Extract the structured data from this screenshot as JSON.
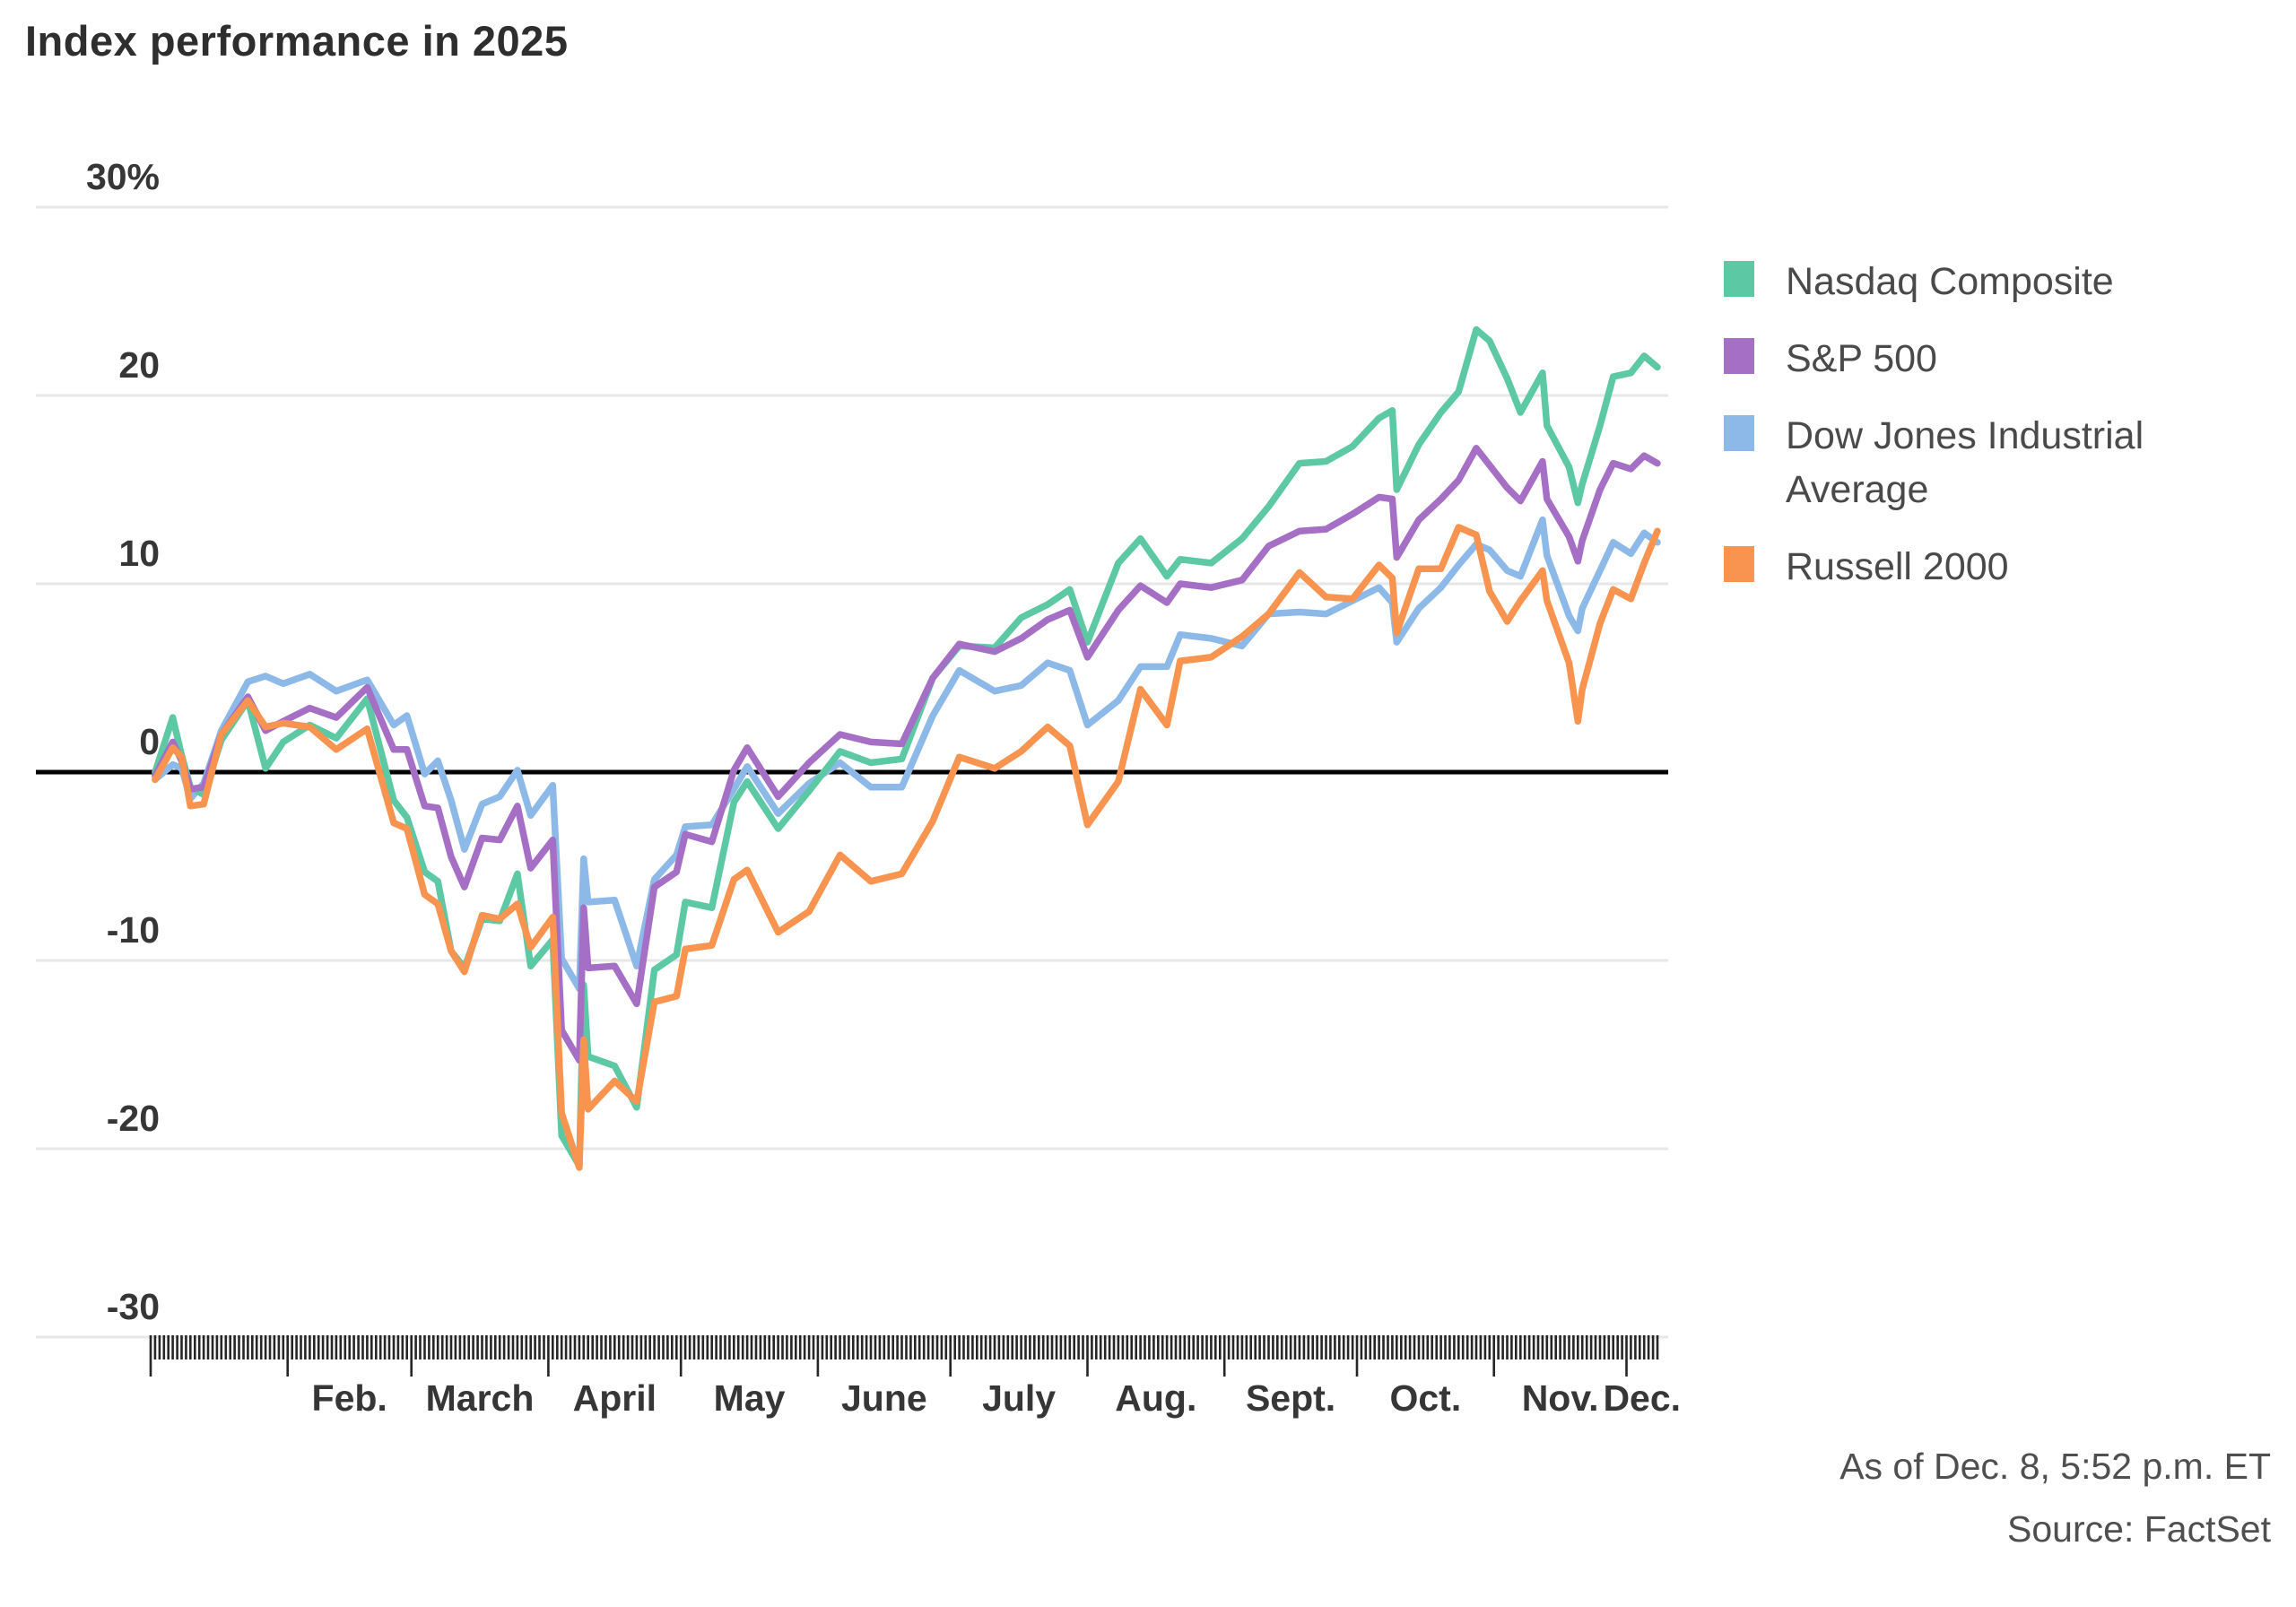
{
  "chart_data": {
    "type": "line",
    "title": "Index performance in 2025",
    "as_of": "As of Dec. 8, 5:52 p.m. ET",
    "source": "Source: FactSet",
    "grid_on": true,
    "legend_position": "right",
    "ylabel": "",
    "xlabel": "",
    "ylim": [
      -30,
      30
    ],
    "y_ticks": [
      {
        "value": 30,
        "label": "30%"
      },
      {
        "value": 20,
        "label": "20"
      },
      {
        "value": 10,
        "label": "10"
      },
      {
        "value": 0,
        "label": "0"
      },
      {
        "value": -10,
        "label": "-10"
      },
      {
        "value": -20,
        "label": "-20"
      },
      {
        "value": -30,
        "label": "-30"
      }
    ],
    "zero_line_color": "#000000",
    "gridline_color": "#e7e7e7",
    "tick_color": "#262626",
    "x_axis": {
      "unit": "day_of_year",
      "start_day": 1,
      "end_day": 342,
      "months": [
        {
          "label": "",
          "start_day": 1
        },
        {
          "label": "Feb.",
          "start_day": 32
        },
        {
          "label": "March",
          "start_day": 60
        },
        {
          "label": "April",
          "start_day": 91
        },
        {
          "label": "May",
          "start_day": 121
        },
        {
          "label": "June",
          "start_day": 152
        },
        {
          "label": "July",
          "start_day": 182
        },
        {
          "label": "Aug.",
          "start_day": 213
        },
        {
          "label": "Sept.",
          "start_day": 244
        },
        {
          "label": "Oct.",
          "start_day": 274
        },
        {
          "label": "Nov.",
          "start_day": 305
        },
        {
          "label": "Dec.",
          "start_day": 335
        }
      ]
    },
    "days": [
      2,
      6,
      8,
      10,
      13,
      17,
      23,
      27,
      31,
      37,
      43,
      50,
      56,
      59,
      63,
      66,
      69,
      72,
      76,
      80,
      84,
      87,
      92,
      94,
      98,
      99,
      100,
      106,
      111,
      115,
      120,
      122,
      128,
      133,
      136,
      143,
      150,
      157,
      164,
      171,
      178,
      184,
      192,
      198,
      204,
      209,
      213,
      220,
      225,
      231,
      234,
      241,
      248,
      254,
      261,
      267,
      273,
      279,
      282,
      283,
      288,
      293,
      297,
      301,
      304,
      308,
      311,
      316,
      317,
      322,
      324,
      325,
      329,
      332,
      336,
      339,
      342
    ],
    "series": [
      {
        "name": "Nasdaq Composite",
        "color": "#5dc8a4",
        "values": [
          0.0,
          2.9,
          0.9,
          -0.8,
          -1.2,
          1.7,
          3.8,
          0.2,
          1.6,
          2.5,
          1.8,
          3.9,
          -1.5,
          -2.4,
          -5.3,
          -5.8,
          -9.5,
          -10.4,
          -7.8,
          -7.9,
          -5.4,
          -10.3,
          -8.9,
          -19.3,
          -20.9,
          -11.3,
          -15.1,
          -15.6,
          -17.8,
          -10.5,
          -9.7,
          -6.9,
          -7.2,
          -1.6,
          -0.5,
          -3.0,
          -1.0,
          1.1,
          0.5,
          0.7,
          5.0,
          6.7,
          6.6,
          8.2,
          8.9,
          9.7,
          6.9,
          11.1,
          12.4,
          10.4,
          11.3,
          11.1,
          12.4,
          14.1,
          16.4,
          16.5,
          17.3,
          18.8,
          19.2,
          15.0,
          17.4,
          19.1,
          20.2,
          23.5,
          22.9,
          20.9,
          19.1,
          21.2,
          18.4,
          16.2,
          14.3,
          15.3,
          18.4,
          21.0,
          21.2,
          22.1,
          21.5
        ]
      },
      {
        "name": "S&P 500",
        "color": "#a56fc5",
        "values": [
          -0.2,
          1.6,
          0.6,
          -0.9,
          -0.8,
          2.0,
          4.0,
          2.2,
          2.7,
          3.4,
          2.9,
          4.5,
          1.2,
          1.2,
          -1.8,
          -1.9,
          -4.5,
          -6.1,
          -3.5,
          -3.6,
          -1.8,
          -5.1,
          -3.6,
          -13.7,
          -15.3,
          -7.2,
          -10.4,
          -10.3,
          -12.3,
          -6.1,
          -5.3,
          -3.3,
          -3.7,
          0.1,
          1.3,
          -1.3,
          0.5,
          2.0,
          1.6,
          1.5,
          5.0,
          6.8,
          6.4,
          7.1,
          8.1,
          8.6,
          6.1,
          8.6,
          9.9,
          9.0,
          10.0,
          9.8,
          10.2,
          12.0,
          12.8,
          12.9,
          13.7,
          14.6,
          14.5,
          11.4,
          13.4,
          14.5,
          15.5,
          17.2,
          16.3,
          15.1,
          14.4,
          16.5,
          14.5,
          12.5,
          11.2,
          12.3,
          15.0,
          16.4,
          16.1,
          16.8,
          16.4
        ]
      },
      {
        "name": "Dow Jones Industrial Average",
        "color": "#8cb9e8",
        "values": [
          -0.4,
          0.4,
          0.2,
          -1.4,
          -0.6,
          2.2,
          4.8,
          5.1,
          4.7,
          5.2,
          4.3,
          4.9,
          2.5,
          3.0,
          -0.1,
          0.6,
          -1.5,
          -4.1,
          -1.7,
          -1.3,
          0.1,
          -2.3,
          -0.7,
          -9.9,
          -11.5,
          -4.6,
          -6.9,
          -6.8,
          -10.3,
          -5.7,
          -4.4,
          -2.9,
          -2.8,
          -0.9,
          0.3,
          -2.2,
          -0.6,
          0.5,
          -0.8,
          -0.8,
          3.0,
          5.4,
          4.3,
          4.6,
          5.8,
          5.4,
          2.5,
          3.8,
          5.6,
          5.6,
          7.3,
          7.1,
          6.7,
          8.4,
          8.5,
          8.4,
          9.1,
          9.8,
          9.0,
          6.9,
          8.7,
          9.8,
          11.0,
          12.1,
          11.8,
          10.7,
          10.4,
          13.4,
          11.5,
          8.3,
          7.5,
          8.7,
          10.7,
          12.2,
          11.6,
          12.7,
          12.2
        ]
      },
      {
        "name": "Russell 2000",
        "color": "#f8944f",
        "values": [
          -0.4,
          1.3,
          0.8,
          -1.8,
          -1.7,
          2.0,
          3.8,
          2.4,
          2.6,
          2.4,
          1.2,
          2.3,
          -2.7,
          -3.0,
          -6.5,
          -7.0,
          -9.5,
          -10.6,
          -7.6,
          -7.8,
          -7.0,
          -9.3,
          -7.7,
          -18.1,
          -21.0,
          -14.2,
          -17.9,
          -16.4,
          -17.5,
          -12.2,
          -11.9,
          -9.4,
          -9.2,
          -5.7,
          -5.2,
          -8.5,
          -7.4,
          -4.4,
          -5.8,
          -5.4,
          -2.6,
          0.8,
          0.2,
          1.1,
          2.4,
          1.4,
          -2.8,
          -0.5,
          4.4,
          2.5,
          5.9,
          6.1,
          7.2,
          8.4,
          10.6,
          9.3,
          9.2,
          11.0,
          10.3,
          7.4,
          10.8,
          10.8,
          13.0,
          12.6,
          9.6,
          8.0,
          9.1,
          10.7,
          9.1,
          5.8,
          2.7,
          4.4,
          7.9,
          9.7,
          9.2,
          11.1,
          12.8
        ]
      }
    ],
    "draw_order": [
      "Dow Jones Industrial Average",
      "Nasdaq Composite",
      "S&P 500",
      "Russell 2000"
    ],
    "line_width": 7.5
  }
}
